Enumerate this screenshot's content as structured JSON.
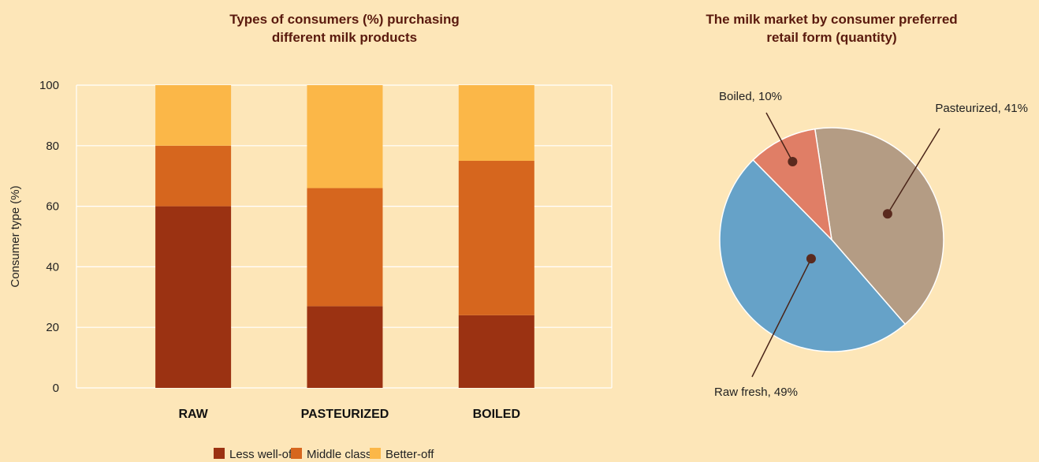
{
  "chart_data": [
    {
      "type": "bar",
      "stacked": true,
      "title_line1": "Types of consumers (%) purchasing",
      "title_line2": "different milk products",
      "ylabel": "Consumer type (%)",
      "xlabel": "",
      "ylim": [
        0,
        100
      ],
      "yticks": [
        "0",
        "20",
        "40",
        "60",
        "80",
        "100"
      ],
      "ytick_values": [
        0,
        20,
        40,
        60,
        80,
        100
      ],
      "grid": true,
      "legend_position": "bottom",
      "categories": [
        "RAW",
        "PASTEURIZED",
        "BOILED"
      ],
      "series": [
        {
          "name": "Less well-off",
          "color": "#9b3212",
          "values": [
            60,
            27,
            24
          ]
        },
        {
          "name": "Middle class",
          "color": "#d6661e",
          "values": [
            20,
            39,
            51
          ]
        },
        {
          "name": "Better-off",
          "color": "#fbb748",
          "values": [
            20,
            34,
            25
          ]
        }
      ]
    },
    {
      "type": "pie",
      "title_line1": "The milk market by consumer preferred",
      "title_line2": "retail form (quantity)",
      "slices": [
        {
          "label": "Pasteurized, 41%",
          "value": 41,
          "color": "#b49c84"
        },
        {
          "label": "Raw fresh, 49%",
          "value": 49,
          "color": "#66a2c8"
        },
        {
          "label": "Boiled, 10%",
          "value": 10,
          "color": "#e07e66"
        }
      ]
    }
  ]
}
